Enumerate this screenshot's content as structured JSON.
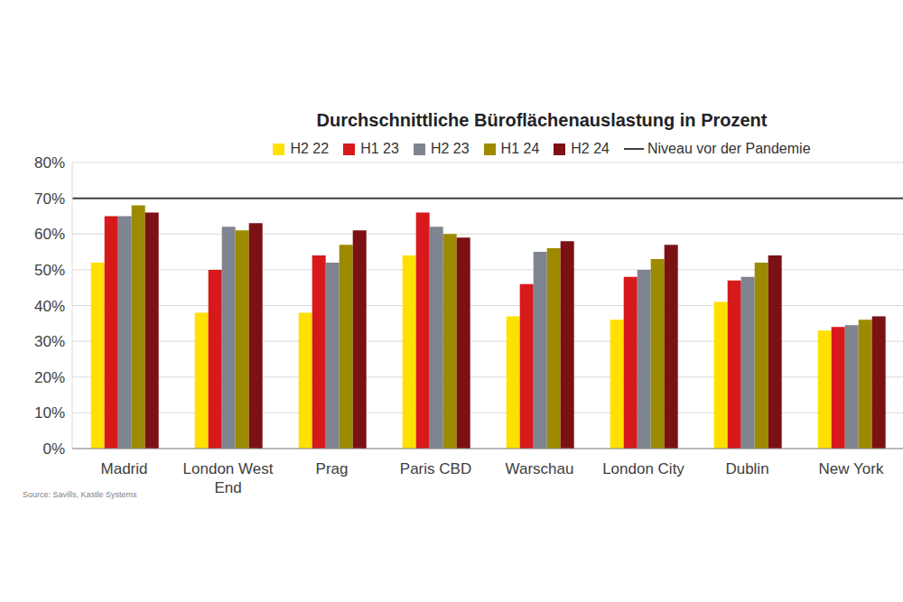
{
  "chart_data": {
    "type": "bar",
    "title": "Durchschnittliche Büroflächenauslastung in Prozent",
    "source": "Source: Savills, Kastle Systems",
    "categories": [
      "Madrid",
      "London West End",
      "Prag",
      "Paris CBD",
      "Warschau",
      "London City",
      "Dublin",
      "New York"
    ],
    "series": [
      {
        "name": "H2 22",
        "color": "#FFE000",
        "values": [
          52,
          38,
          38,
          54,
          37,
          36,
          41,
          33
        ]
      },
      {
        "name": "H1 23",
        "color": "#D7191C",
        "values": [
          65,
          50,
          54,
          66,
          46,
          48,
          47,
          34
        ]
      },
      {
        "name": "H2 23",
        "color": "#7F8590",
        "values": [
          65,
          62,
          52,
          62,
          55,
          50,
          48,
          34.5
        ]
      },
      {
        "name": "H1 24",
        "color": "#9C8A00",
        "values": [
          68,
          61,
          57,
          60,
          56,
          53,
          52,
          36
        ]
      },
      {
        "name": "H2 24",
        "color": "#7B1113",
        "values": [
          66,
          63,
          61,
          59,
          58,
          57,
          54,
          37
        ]
      }
    ],
    "reference_lines": [
      {
        "name": "Niveau vor der Pandemie",
        "value": 70,
        "color": "#404040"
      }
    ],
    "ylim": [
      0,
      80
    ],
    "yticks": [
      {
        "value": 0,
        "label": "0%"
      },
      {
        "value": 10,
        "label": "10%"
      },
      {
        "value": 20,
        "label": "20%"
      },
      {
        "value": 30,
        "label": "30%"
      },
      {
        "value": 40,
        "label": "40%"
      },
      {
        "value": 50,
        "label": "50%"
      },
      {
        "value": 60,
        "label": "60%"
      },
      {
        "value": 70,
        "label": "70%"
      },
      {
        "value": 80,
        "label": "80%"
      }
    ],
    "grid": true
  }
}
